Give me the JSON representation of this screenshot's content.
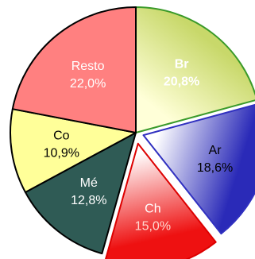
{
  "chart_data": {
    "type": "pie",
    "slices": [
      {
        "label": "Br",
        "value": 20.8,
        "value_text": "20,8%",
        "bold": true,
        "text_color": "#ffffff",
        "label_color": "#ffffff",
        "fill_light": "#ffffd8",
        "fill_dark": "#c8d86a",
        "stroke": "#3a9a2a"
      },
      {
        "label": "Ar",
        "value": 18.6,
        "value_text": "18,6%",
        "bold": false,
        "text_color": "#000000",
        "label_color": "#000000",
        "fill_light": "#ffffff",
        "fill_dark": "#2a2ab8",
        "stroke": "#3030c0"
      },
      {
        "label": "Ch",
        "value": 15.0,
        "value_text": "15,0%",
        "bold": false,
        "text_color": "#ffd8d0",
        "label_color": "#ffffff",
        "fill_light": "#ffffff",
        "fill_dark": "#ee1111",
        "stroke": "#dd0000"
      },
      {
        "label": "Mé",
        "value": 12.8,
        "value_text": "12,8%",
        "bold": false,
        "text_color": "#ffffff",
        "label_color": "#ffffff",
        "fill_light": "#2f5b55",
        "fill_dark": "#2f5b55",
        "stroke": "#000000"
      },
      {
        "label": "Co",
        "value": 10.9,
        "value_text": "10,9%",
        "bold": false,
        "text_color": "#000000",
        "label_color": "#000000",
        "fill_light": "#ffff99",
        "fill_dark": "#ffff99",
        "stroke": "#000000"
      },
      {
        "label": "Resto",
        "value": 22.0,
        "value_text": "22,0%",
        "bold": false,
        "text_color": "#ffffff",
        "label_color": "#ffffff",
        "fill_light": "#ff8080",
        "fill_dark": "#ff8080",
        "stroke": "#000000"
      }
    ],
    "start_angle_deg": 0,
    "direction": "clockwise"
  }
}
